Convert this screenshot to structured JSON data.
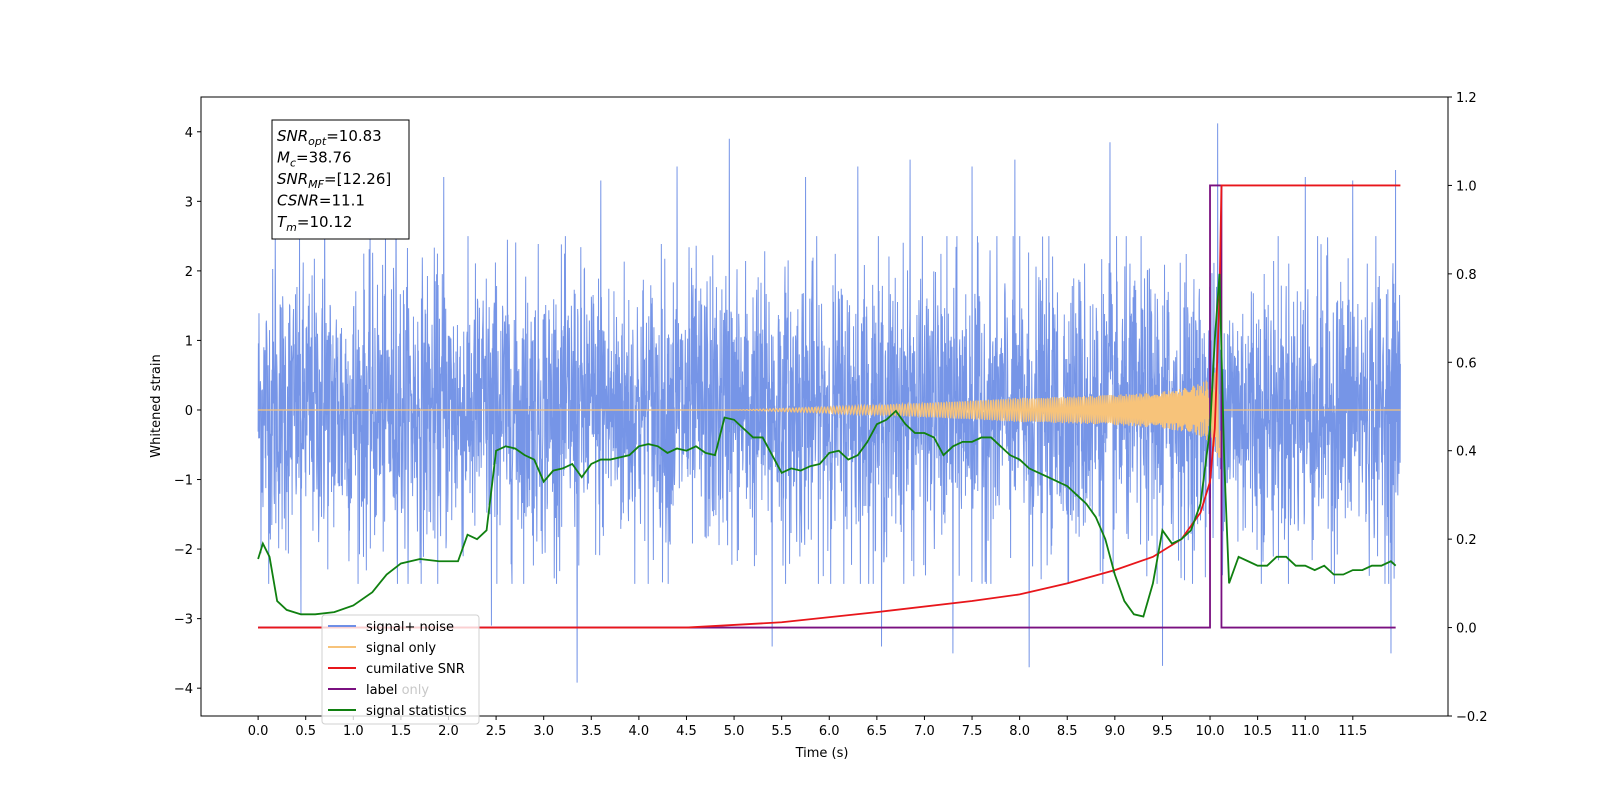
{
  "chart_data": {
    "type": "line",
    "xlabel": "Time (s)",
    "ylabel": "Whitened strain",
    "xlim": [
      -0.6,
      12.5
    ],
    "ylim": [
      -4.4,
      4.5
    ],
    "y2lim": [
      -0.2,
      1.2
    ],
    "x_ticks": [
      0.0,
      0.5,
      1.0,
      1.5,
      2.0,
      2.5,
      3.0,
      3.5,
      4.0,
      4.5,
      5.0,
      5.5,
      6.0,
      6.5,
      7.0,
      7.5,
      8.0,
      8.5,
      9.0,
      9.5,
      10.0,
      10.5,
      11.0,
      11.5
    ],
    "x_tick_labels": [
      "0.0",
      "0.5",
      "1.0",
      "1.5",
      "2.0",
      "2.5",
      "3.0",
      "3.5",
      "4.0",
      "4.5",
      "5.0",
      "5.5",
      "6.0",
      "6.5",
      "7.0",
      "7.5",
      "8.0",
      "8.5",
      "9.0",
      "9.5",
      "10.0",
      "10.5",
      "11.0",
      "11.5"
    ],
    "y_ticks": [
      -4,
      -3,
      -2,
      -1,
      0,
      1,
      2,
      3,
      4
    ],
    "y_tick_labels": [
      "−4",
      "−3",
      "−2",
      "−1",
      "0",
      "1",
      "2",
      "3",
      "4"
    ],
    "y2_ticks": [
      -0.2,
      0.0,
      0.2,
      0.4,
      0.6,
      0.8,
      1.0,
      1.2
    ],
    "y2_tick_labels": [
      "−0.2",
      "0.0",
      "0.2",
      "0.4",
      "0.6",
      "0.8",
      "1.0",
      "1.2"
    ],
    "legend": {
      "placement": "lower-left",
      "entries": [
        {
          "label": "signal+ noise",
          "color": "#6f8fe6"
        },
        {
          "label": "signal only",
          "color": "#f7c37a"
        },
        {
          "label": "cumilative SNR",
          "color": "#e8161b"
        },
        {
          "label": "label",
          "color": "#7a1080"
        },
        {
          "label": "signal statistics",
          "color": "#108010"
        }
      ],
      "overlapped_text": "label only"
    },
    "stats_box": {
      "lines": [
        {
          "base": "SNR",
          "sub": "opt",
          "value": "=10.83"
        },
        {
          "base": "M",
          "sub": "c",
          "value": "=38.76"
        },
        {
          "base": "SNR",
          "sub": "MF",
          "value": "=[12.26]"
        },
        {
          "base": "CSNR",
          "sub": "",
          "value": "=11.1"
        },
        {
          "base": "T",
          "sub": "m",
          "value": "=10.12"
        }
      ]
    },
    "series": [
      {
        "name": "signal+ noise",
        "axis": "left",
        "color": "#6f8fe6",
        "description_values": {
          "x_start": 0.0,
          "x_end": 12.0,
          "typical_upper": 2.5,
          "typical_lower": -2.5,
          "max": 4.12,
          "min": -3.92
        },
        "spikes": [
          {
            "x": 0.18,
            "y": 2.5
          },
          {
            "x": 0.7,
            "y": 3.3
          },
          {
            "x": 1.45,
            "y": 3.3
          },
          {
            "x": 1.95,
            "y": 3.35
          },
          {
            "x": 3.6,
            "y": 3.3
          },
          {
            "x": 4.4,
            "y": 3.5
          },
          {
            "x": 4.95,
            "y": 3.9
          },
          {
            "x": 5.75,
            "y": 3.35
          },
          {
            "x": 6.3,
            "y": 3.5
          },
          {
            "x": 6.85,
            "y": 3.6
          },
          {
            "x": 7.5,
            "y": 3.5
          },
          {
            "x": 7.95,
            "y": 3.6
          },
          {
            "x": 8.95,
            "y": 3.85
          },
          {
            "x": 10.08,
            "y": 4.12
          },
          {
            "x": 11.0,
            "y": 3.35
          },
          {
            "x": 11.5,
            "y": 3.3
          },
          {
            "x": 11.95,
            "y": 3.45
          },
          {
            "x": 0.45,
            "y": -2.95
          },
          {
            "x": 2.45,
            "y": -3.1
          },
          {
            "x": 3.35,
            "y": -3.92
          },
          {
            "x": 5.4,
            "y": -3.4
          },
          {
            "x": 6.55,
            "y": -3.4
          },
          {
            "x": 7.3,
            "y": -3.5
          },
          {
            "x": 8.1,
            "y": -3.7
          },
          {
            "x": 9.5,
            "y": -3.68
          },
          {
            "x": 11.9,
            "y": -3.5
          }
        ]
      },
      {
        "name": "signal only",
        "axis": "left",
        "color": "#f7c37a",
        "description_values": {
          "flat_until": 7.5,
          "chirp_peak_x": 10.1,
          "peak_amplitude": 0.7,
          "end_x": 10.12
        }
      },
      {
        "name": "cumilative SNR",
        "axis": "right",
        "x": [
          0.0,
          4.5,
          5.5,
          6.5,
          7.5,
          8.0,
          8.5,
          9.0,
          9.4,
          9.7,
          9.9,
          10.0,
          10.05,
          10.1,
          10.12,
          12.0
        ],
        "values": [
          0.0,
          0.0,
          0.012,
          0.035,
          0.06,
          0.075,
          0.1,
          0.13,
          0.16,
          0.2,
          0.26,
          0.33,
          0.45,
          0.75,
          1.0,
          1.0
        ]
      },
      {
        "name": "label",
        "axis": "right",
        "x": [
          0.0,
          10.0,
          10.0,
          10.12,
          10.12,
          11.95
        ],
        "values": [
          0.0,
          0.0,
          1.0,
          1.0,
          0.0,
          0.0
        ]
      },
      {
        "name": "signal statistics",
        "axis": "right",
        "x": [
          0.0,
          0.05,
          0.12,
          0.2,
          0.3,
          0.45,
          0.6,
          0.8,
          1.0,
          1.2,
          1.35,
          1.5,
          1.7,
          1.9,
          2.0,
          2.1,
          2.2,
          2.3,
          2.4,
          2.5,
          2.6,
          2.7,
          2.8,
          2.9,
          3.0,
          3.1,
          3.2,
          3.3,
          3.4,
          3.5,
          3.6,
          3.7,
          3.8,
          3.9,
          4.0,
          4.1,
          4.2,
          4.3,
          4.4,
          4.5,
          4.6,
          4.7,
          4.8,
          4.9,
          5.0,
          5.1,
          5.2,
          5.3,
          5.4,
          5.5,
          5.6,
          5.7,
          5.8,
          5.9,
          6.0,
          6.1,
          6.2,
          6.3,
          6.4,
          6.5,
          6.6,
          6.7,
          6.8,
          6.9,
          7.0,
          7.1,
          7.2,
          7.3,
          7.4,
          7.5,
          7.6,
          7.7,
          7.8,
          7.9,
          8.0,
          8.1,
          8.2,
          8.3,
          8.4,
          8.5,
          8.6,
          8.7,
          8.8,
          8.9,
          9.0,
          9.1,
          9.2,
          9.3,
          9.4,
          9.5,
          9.6,
          9.7,
          9.8,
          9.9,
          10.0,
          10.05,
          10.1,
          10.15,
          10.2,
          10.3,
          10.4,
          10.5,
          10.6,
          10.7,
          10.8,
          10.9,
          11.0,
          11.1,
          11.2,
          11.3,
          11.4,
          11.5,
          11.6,
          11.7,
          11.8,
          11.9,
          11.95
        ],
        "values": [
          0.155,
          0.19,
          0.16,
          0.06,
          0.04,
          0.03,
          0.03,
          0.035,
          0.05,
          0.08,
          0.12,
          0.145,
          0.155,
          0.15,
          0.15,
          0.15,
          0.21,
          0.2,
          0.22,
          0.4,
          0.41,
          0.405,
          0.39,
          0.38,
          0.33,
          0.355,
          0.36,
          0.37,
          0.34,
          0.37,
          0.38,
          0.38,
          0.385,
          0.39,
          0.41,
          0.415,
          0.41,
          0.395,
          0.405,
          0.4,
          0.41,
          0.395,
          0.39,
          0.475,
          0.47,
          0.45,
          0.43,
          0.43,
          0.39,
          0.35,
          0.36,
          0.355,
          0.365,
          0.37,
          0.395,
          0.4,
          0.38,
          0.39,
          0.42,
          0.46,
          0.47,
          0.49,
          0.46,
          0.44,
          0.44,
          0.43,
          0.39,
          0.41,
          0.42,
          0.42,
          0.43,
          0.43,
          0.41,
          0.39,
          0.38,
          0.36,
          0.35,
          0.34,
          0.33,
          0.32,
          0.3,
          0.28,
          0.25,
          0.2,
          0.12,
          0.06,
          0.03,
          0.025,
          0.1,
          0.22,
          0.19,
          0.2,
          0.22,
          0.28,
          0.45,
          0.65,
          0.8,
          0.37,
          0.1,
          0.16,
          0.15,
          0.14,
          0.14,
          0.16,
          0.16,
          0.14,
          0.14,
          0.13,
          0.14,
          0.12,
          0.12,
          0.13,
          0.13,
          0.14,
          0.14,
          0.15,
          0.14
        ]
      }
    ]
  }
}
